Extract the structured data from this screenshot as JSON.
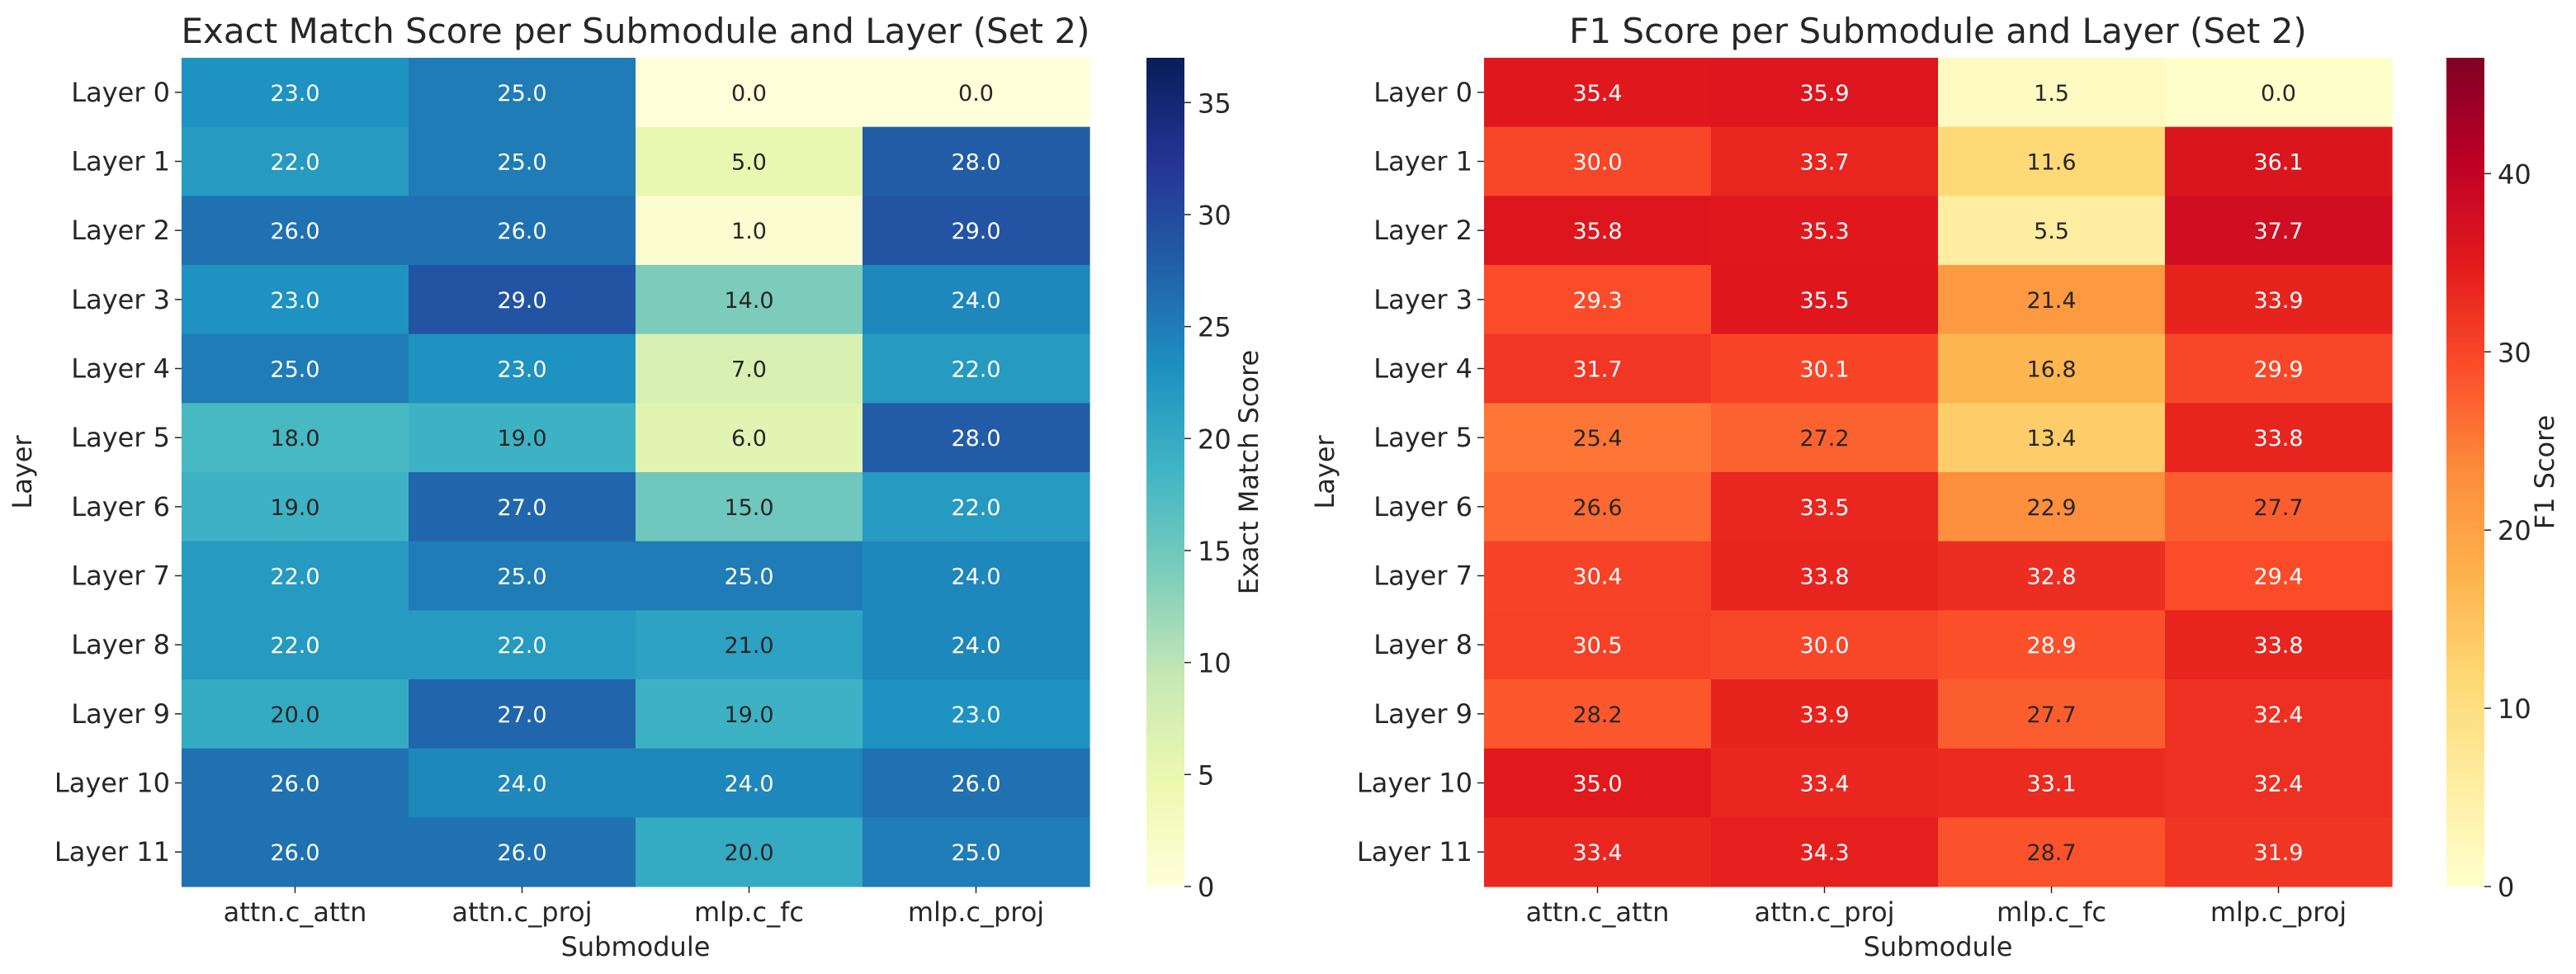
{
  "chart_data": [
    {
      "type": "heatmap",
      "title": "Exact Match Score per Submodule and Layer (Set 2)",
      "xlabel": "Submodule",
      "ylabel": "Layer",
      "categories": [
        "attn.c_attn",
        "attn.c_proj",
        "mlp.c_fc",
        "mlp.c_proj"
      ],
      "rows": [
        "Layer 0",
        "Layer 1",
        "Layer 2",
        "Layer 3",
        "Layer 4",
        "Layer 5",
        "Layer 6",
        "Layer 7",
        "Layer 8",
        "Layer 9",
        "Layer 10",
        "Layer 11"
      ],
      "values": [
        [
          23.0,
          25.0,
          0.0,
          0.0
        ],
        [
          22.0,
          25.0,
          5.0,
          28.0
        ],
        [
          26.0,
          26.0,
          1.0,
          29.0
        ],
        [
          23.0,
          29.0,
          14.0,
          24.0
        ],
        [
          25.0,
          23.0,
          7.0,
          22.0
        ],
        [
          18.0,
          19.0,
          6.0,
          28.0
        ],
        [
          19.0,
          27.0,
          15.0,
          22.0
        ],
        [
          22.0,
          25.0,
          25.0,
          24.0
        ],
        [
          22.0,
          22.0,
          21.0,
          24.0
        ],
        [
          20.0,
          27.0,
          19.0,
          23.0
        ],
        [
          26.0,
          24.0,
          24.0,
          26.0
        ],
        [
          26.0,
          26.0,
          20.0,
          25.0
        ]
      ],
      "colorbar_label": "Exact Match Score",
      "colorbar_ticks": [
        "0",
        "5",
        "10",
        "15",
        "20",
        "25",
        "30",
        "35"
      ],
      "vmin": 0,
      "vmax": 37,
      "colormap": "YlGnBu",
      "colormap_stops": [
        "#ffffd9",
        "#edf8b1",
        "#c7e9b4",
        "#7fcdbb",
        "#41b6c4",
        "#1d91c0",
        "#225ea8",
        "#253494",
        "#081d58"
      ]
    },
    {
      "type": "heatmap",
      "title": "F1 Score per Submodule and Layer (Set 2)",
      "xlabel": "Submodule",
      "ylabel": "Layer",
      "categories": [
        "attn.c_attn",
        "attn.c_proj",
        "mlp.c_fc",
        "mlp.c_proj"
      ],
      "rows": [
        "Layer 0",
        "Layer 1",
        "Layer 2",
        "Layer 3",
        "Layer 4",
        "Layer 5",
        "Layer 6",
        "Layer 7",
        "Layer 8",
        "Layer 9",
        "Layer 10",
        "Layer 11"
      ],
      "values": [
        [
          35.4,
          35.9,
          1.5,
          0.0
        ],
        [
          30.0,
          33.7,
          11.6,
          36.1
        ],
        [
          35.8,
          35.3,
          5.5,
          37.7
        ],
        [
          29.3,
          35.5,
          21.4,
          33.9
        ],
        [
          31.7,
          30.1,
          16.8,
          29.9
        ],
        [
          25.4,
          27.2,
          13.4,
          33.8
        ],
        [
          26.6,
          33.5,
          22.9,
          27.7
        ],
        [
          30.4,
          33.8,
          32.8,
          29.4
        ],
        [
          30.5,
          30.0,
          28.9,
          33.8
        ],
        [
          28.2,
          33.9,
          27.7,
          32.4
        ],
        [
          35.0,
          33.4,
          33.1,
          32.4
        ],
        [
          33.4,
          34.3,
          28.7,
          31.9
        ]
      ],
      "colorbar_label": "F1 Score",
      "colorbar_ticks": [
        "0",
        "10",
        "20",
        "30",
        "40"
      ],
      "vmin": 0,
      "vmax": 46.5,
      "colormap": "YlOrRd",
      "colormap_stops": [
        "#ffffcc",
        "#ffeda0",
        "#fed976",
        "#feb24c",
        "#fd8d3c",
        "#fc4e2a",
        "#e31a1c",
        "#bd0026",
        "#800026"
      ]
    }
  ]
}
